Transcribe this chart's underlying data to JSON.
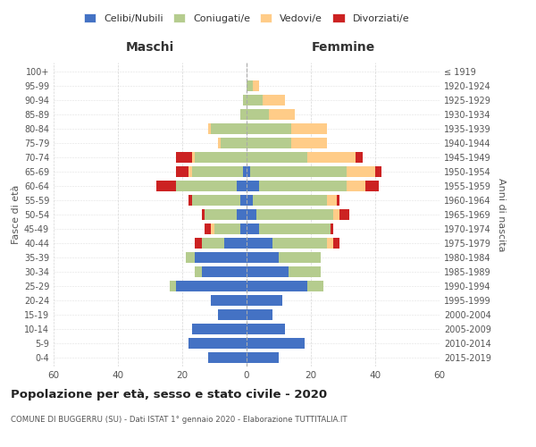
{
  "age_groups": [
    "0-4",
    "5-9",
    "10-14",
    "15-19",
    "20-24",
    "25-29",
    "30-34",
    "35-39",
    "40-44",
    "45-49",
    "50-54",
    "55-59",
    "60-64",
    "65-69",
    "70-74",
    "75-79",
    "80-84",
    "85-89",
    "90-94",
    "95-99",
    "100+"
  ],
  "birth_years": [
    "2015-2019",
    "2010-2014",
    "2005-2009",
    "2000-2004",
    "1995-1999",
    "1990-1994",
    "1985-1989",
    "1980-1984",
    "1975-1979",
    "1970-1974",
    "1965-1969",
    "1960-1964",
    "1955-1959",
    "1950-1954",
    "1945-1949",
    "1940-1944",
    "1935-1939",
    "1930-1934",
    "1925-1929",
    "1920-1924",
    "≤ 1919"
  ],
  "colors": {
    "celibi": "#4472C4",
    "coniugati": "#B5CC8E",
    "vedovi": "#FFCC88",
    "divorziati": "#CC2222"
  },
  "male": {
    "celibi": [
      12,
      18,
      17,
      9,
      11,
      22,
      14,
      16,
      7,
      2,
      3,
      2,
      3,
      1,
      0,
      0,
      0,
      0,
      0,
      0,
      0
    ],
    "coniugati": [
      0,
      0,
      0,
      0,
      0,
      2,
      2,
      3,
      7,
      8,
      10,
      15,
      19,
      16,
      16,
      8,
      11,
      2,
      1,
      0,
      0
    ],
    "vedovi": [
      0,
      0,
      0,
      0,
      0,
      0,
      0,
      0,
      0,
      1,
      0,
      0,
      0,
      1,
      1,
      1,
      1,
      0,
      0,
      0,
      0
    ],
    "divorziati": [
      0,
      0,
      0,
      0,
      0,
      0,
      0,
      0,
      2,
      2,
      1,
      1,
      6,
      4,
      5,
      0,
      0,
      0,
      0,
      0,
      0
    ]
  },
  "female": {
    "celibi": [
      10,
      18,
      12,
      8,
      11,
      19,
      13,
      10,
      8,
      4,
      3,
      2,
      4,
      1,
      0,
      0,
      0,
      0,
      0,
      0,
      0
    ],
    "coniugati": [
      0,
      0,
      0,
      0,
      0,
      5,
      10,
      13,
      17,
      22,
      24,
      23,
      27,
      30,
      19,
      14,
      14,
      7,
      5,
      2,
      0
    ],
    "vedovi": [
      0,
      0,
      0,
      0,
      0,
      0,
      0,
      0,
      2,
      0,
      2,
      3,
      6,
      9,
      15,
      11,
      11,
      8,
      7,
      2,
      0
    ],
    "divorziati": [
      0,
      0,
      0,
      0,
      0,
      0,
      0,
      0,
      2,
      1,
      3,
      1,
      4,
      2,
      2,
      0,
      0,
      0,
      0,
      0,
      0
    ]
  },
  "title": "Popolazione per età, sesso e stato civile - 2020",
  "subtitle": "COMUNE DI BUGGERRU (SU) - Dati ISTAT 1° gennaio 2020 - Elaborazione TUTTITALIA.IT",
  "xlabel_left": "Maschi",
  "xlabel_right": "Femmine",
  "ylabel_left": "Fasce di età",
  "ylabel_right": "Anni di nascita",
  "xlim": 60,
  "legend_labels": [
    "Celibi/Nubili",
    "Coniugati/e",
    "Vedovi/e",
    "Divorziati/e"
  ],
  "bg_color": "#ffffff",
  "grid_color": "#cccccc"
}
